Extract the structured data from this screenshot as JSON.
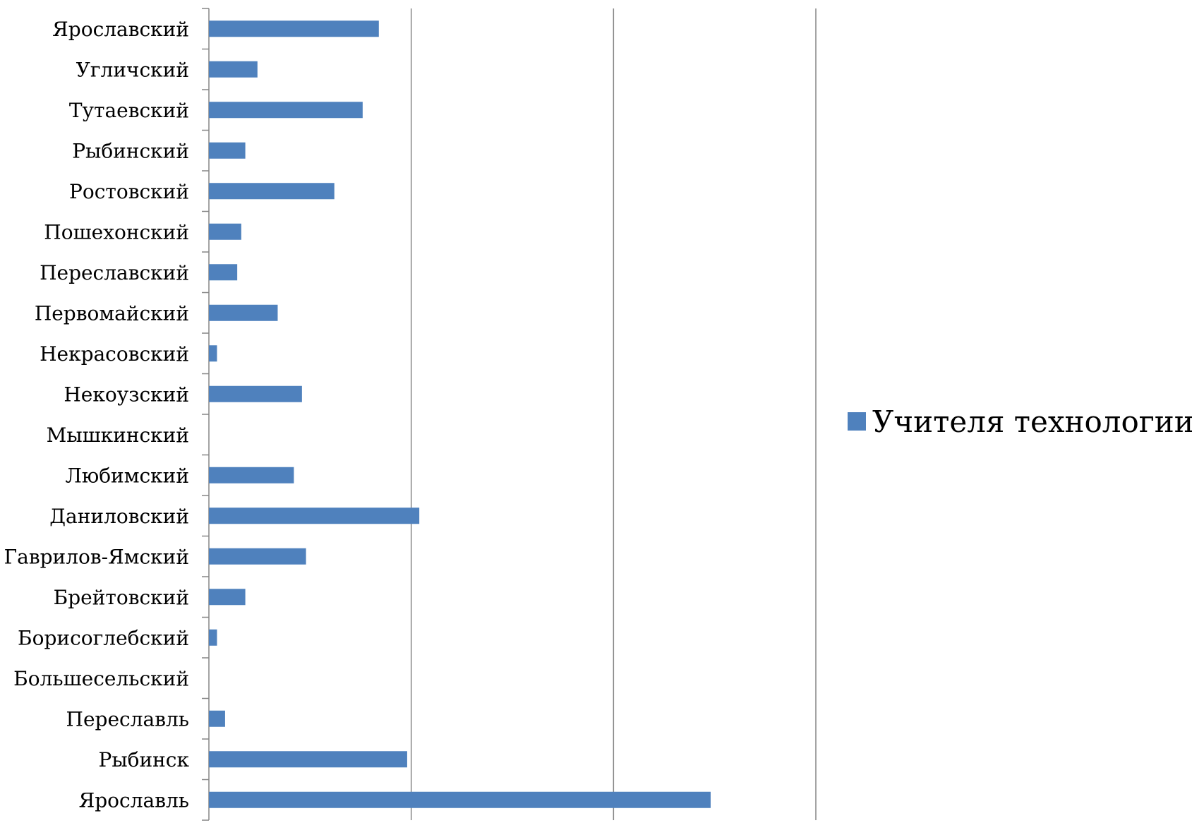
{
  "chart_data": {
    "type": "bar",
    "orientation": "horizontal",
    "categories": [
      "Ярославский",
      "Угличский",
      "Тутаевский",
      "Рыбинский",
      "Ростовский",
      "Пошехонский",
      "Переславский",
      "Первомайский",
      "Некрасовский",
      "Некоузский",
      "Мышкинский",
      "Любимский",
      "Даниловский",
      "Гаврилов-Ямский",
      "Брейтовский",
      "Борисоглебский",
      "Большесельский",
      "Переславль",
      "Рыбинск",
      "Ярославль"
    ],
    "series": [
      {
        "name": "Учителя технологии",
        "color": "#4f81bd",
        "values": [
          21,
          6,
          19,
          4.5,
          15.5,
          4,
          3.5,
          8.5,
          1,
          11.5,
          0,
          10.5,
          26,
          12,
          4.5,
          1,
          0,
          2,
          24.5,
          62
        ]
      }
    ],
    "xlim": [
      0,
      75
    ],
    "gridline_step": 25,
    "x_tick_labels_shown": false,
    "legend_position": "right",
    "grid": true
  }
}
